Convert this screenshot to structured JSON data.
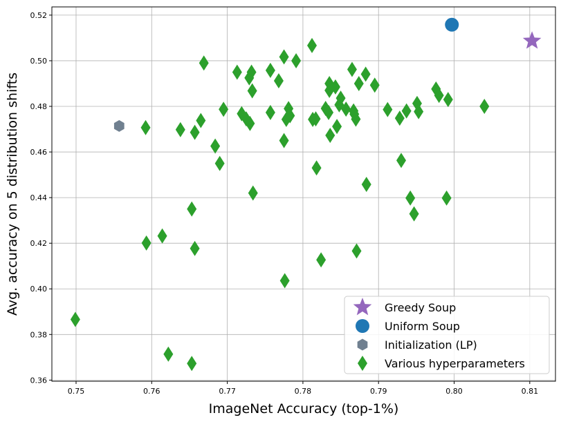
{
  "chart_data": {
    "type": "scatter",
    "xlabel": "ImageNet Accuracy (top-1%)",
    "ylabel": "Avg. accuracy on 5 distribution shifts",
    "xlim": [
      0.7468,
      0.8134
    ],
    "ylim": [
      0.3595,
      0.5236
    ],
    "xticks": [
      "0.75",
      "0.76",
      "0.77",
      "0.78",
      "0.79",
      "0.80",
      "0.81"
    ],
    "yticks": [
      "0.36",
      "0.38",
      "0.40",
      "0.42",
      "0.44",
      "0.46",
      "0.48",
      "0.50",
      "0.52"
    ],
    "grid": true,
    "legend_position": "lower-right",
    "series": [
      {
        "name": "Greedy Soup",
        "marker": "star",
        "color": "#9467bd",
        "points": [
          [
            0.8103,
            0.5087
          ]
        ]
      },
      {
        "name": "Uniform Soup",
        "marker": "circle",
        "color": "#1f77b4",
        "points": [
          [
            0.7997,
            0.5158
          ]
        ]
      },
      {
        "name": "Initialization (LP)",
        "marker": "hexagon",
        "color": "#708090",
        "points": [
          [
            0.7557,
            0.4714
          ]
        ]
      },
      {
        "name": "Various hyperparameters",
        "marker": "thin-diamond",
        "color": "#2ca02c",
        "points": [
          [
            0.7499,
            0.3866
          ],
          [
            0.7592,
            0.4707
          ],
          [
            0.7593,
            0.4201
          ],
          [
            0.7614,
            0.4232
          ],
          [
            0.7622,
            0.3714
          ],
          [
            0.7638,
            0.4698
          ],
          [
            0.7653,
            0.435
          ],
          [
            0.7653,
            0.3673
          ],
          [
            0.7657,
            0.4686
          ],
          [
            0.7657,
            0.4177
          ],
          [
            0.7665,
            0.4738
          ],
          [
            0.7669,
            0.499
          ],
          [
            0.7684,
            0.4626
          ],
          [
            0.769,
            0.455
          ],
          [
            0.7695,
            0.4787
          ],
          [
            0.7713,
            0.495
          ],
          [
            0.7719,
            0.4768
          ],
          [
            0.7725,
            0.4745
          ],
          [
            0.7729,
            0.4925
          ],
          [
            0.773,
            0.4725
          ],
          [
            0.7732,
            0.495
          ],
          [
            0.7733,
            0.4868
          ],
          [
            0.7734,
            0.442
          ],
          [
            0.7757,
            0.4958
          ],
          [
            0.7757,
            0.4773
          ],
          [
            0.7768,
            0.4912
          ],
          [
            0.7775,
            0.5017
          ],
          [
            0.7775,
            0.465
          ],
          [
            0.7776,
            0.4036
          ],
          [
            0.7778,
            0.4743
          ],
          [
            0.7781,
            0.479
          ],
          [
            0.7783,
            0.4759
          ],
          [
            0.7791,
            0.5
          ],
          [
            0.7812,
            0.5067
          ],
          [
            0.7813,
            0.4743
          ],
          [
            0.7817,
            0.4745
          ],
          [
            0.7818,
            0.453
          ],
          [
            0.7824,
            0.4127
          ],
          [
            0.783,
            0.4791
          ],
          [
            0.7834,
            0.4773
          ],
          [
            0.7835,
            0.49
          ],
          [
            0.7835,
            0.487
          ],
          [
            0.7836,
            0.4673
          ],
          [
            0.7843,
            0.4885
          ],
          [
            0.7845,
            0.4712
          ],
          [
            0.7848,
            0.4807
          ],
          [
            0.785,
            0.4836
          ],
          [
            0.7857,
            0.4788
          ],
          [
            0.7865,
            0.4962
          ],
          [
            0.7867,
            0.478
          ],
          [
            0.7868,
            0.4766
          ],
          [
            0.787,
            0.4744
          ],
          [
            0.7871,
            0.4166
          ],
          [
            0.7874,
            0.49
          ],
          [
            0.7883,
            0.4941
          ],
          [
            0.7884,
            0.4458
          ],
          [
            0.7895,
            0.4893
          ],
          [
            0.7912,
            0.4786
          ],
          [
            0.7928,
            0.4748
          ],
          [
            0.793,
            0.4563
          ],
          [
            0.7937,
            0.478
          ],
          [
            0.7942,
            0.4398
          ],
          [
            0.7947,
            0.4329
          ],
          [
            0.7951,
            0.4813
          ],
          [
            0.7953,
            0.4777
          ],
          [
            0.7976,
            0.4876
          ],
          [
            0.798,
            0.4848
          ],
          [
            0.799,
            0.4398
          ],
          [
            0.7992,
            0.483
          ],
          [
            0.804,
            0.48
          ]
        ]
      }
    ]
  }
}
